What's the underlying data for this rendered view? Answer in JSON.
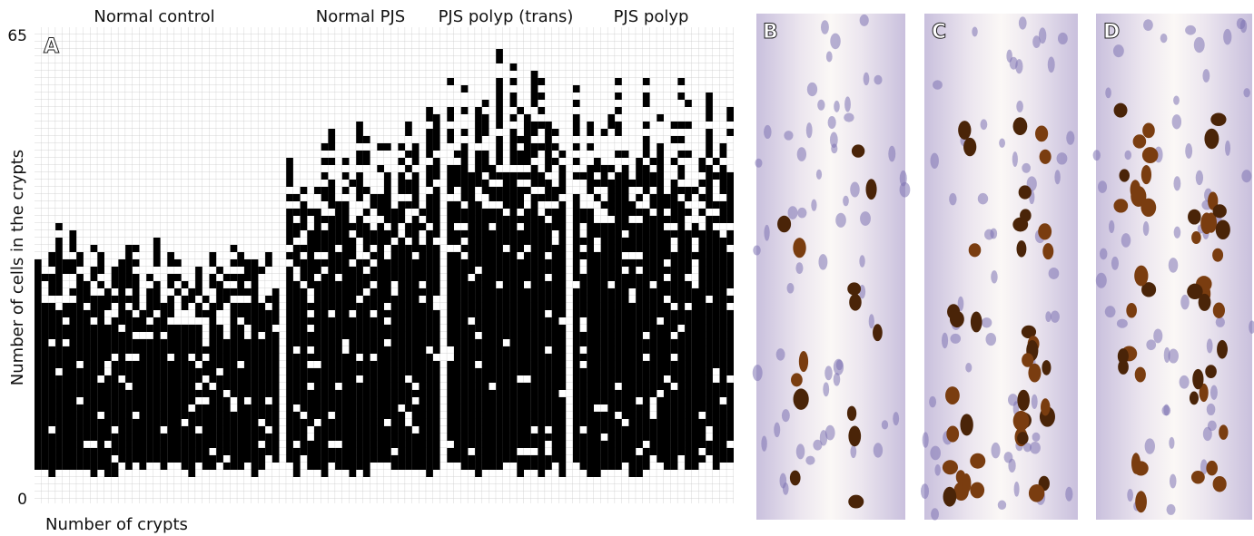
{
  "panel_a": {
    "label": "A",
    "groups": [
      "Normal control",
      "Normal PJS",
      "PJS polyp (trans)",
      "PJS polyp"
    ],
    "y_axis_label": "Number of cells in the crypts",
    "x_axis_label": "Number of crypts",
    "y_ticks": [
      "65",
      "0"
    ]
  },
  "panel_b": {
    "label": "B"
  },
  "panel_c": {
    "label": "C"
  },
  "panel_d": {
    "label": "D"
  }
}
